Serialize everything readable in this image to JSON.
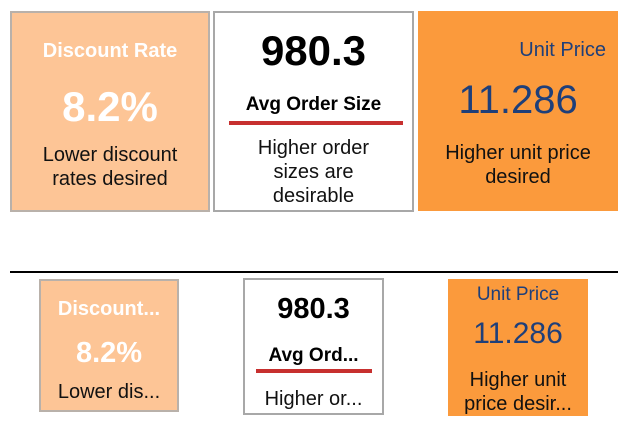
{
  "top": {
    "discount": {
      "title": "Discount Rate",
      "value": "8.2%",
      "desc_line1": "Lower discount",
      "desc_line2": "rates desired"
    },
    "order": {
      "value": "980.3",
      "title": "Avg Order Size",
      "desc_line1": "Higher order",
      "desc_line2": "sizes are",
      "desc_line3": "desirable"
    },
    "price": {
      "title": "Unit Price",
      "value": "11.286",
      "desc_line1": "Higher unit price",
      "desc_line2": "desired"
    }
  },
  "bottom": {
    "discount": {
      "title": "Discount...",
      "value": "8.2%",
      "desc_line1": "Lower dis..."
    },
    "order": {
      "value": "980.3",
      "title": "Avg Ord...",
      "desc_line1": "Higher or..."
    },
    "price": {
      "title": "Unit Price",
      "value": "11.286",
      "desc_line1": "Higher unit",
      "desc_line2": "price desir..."
    }
  },
  "colors": {
    "peach_bg": "#fdc596",
    "orange_bg": "#fb9a3c",
    "accent_bar": "#c7302f",
    "value_blue": "#1e3f7a"
  }
}
